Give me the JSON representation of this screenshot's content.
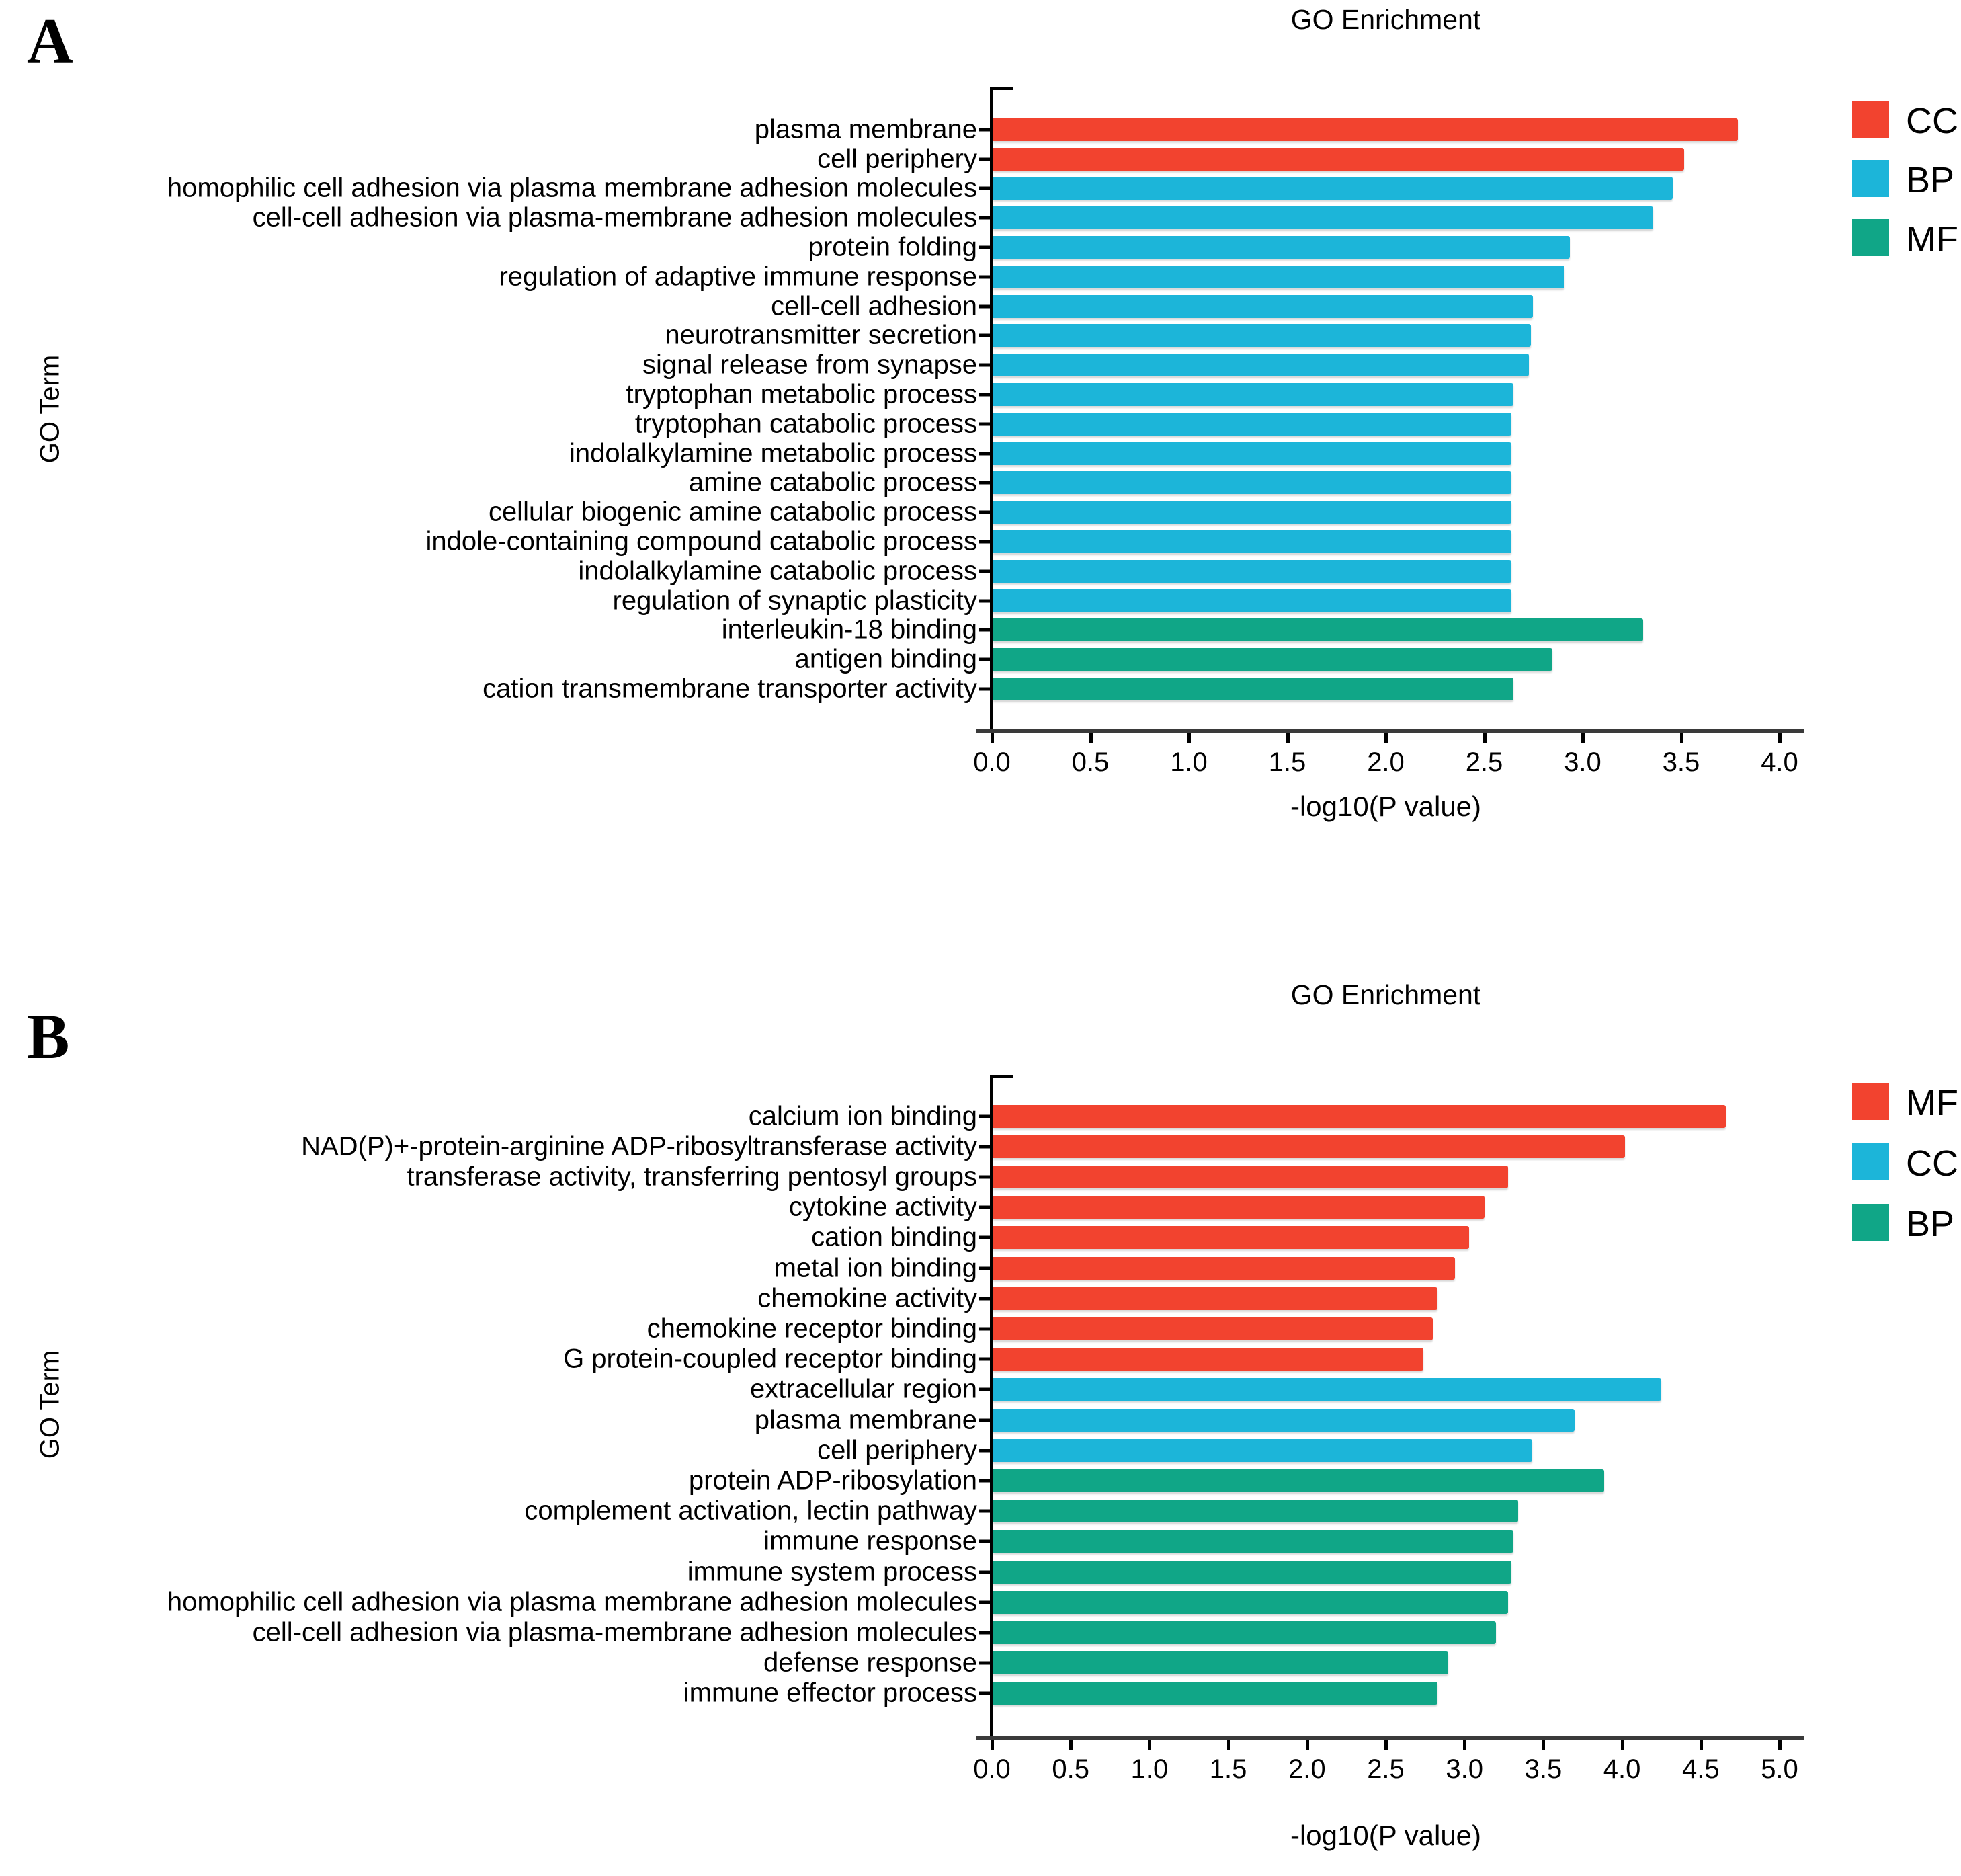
{
  "chart_data": [
    {
      "type": "bar",
      "orientation": "horizontal",
      "panel_label": "A",
      "title": "GO Enrichment",
      "xlabel": "-log10(P value)",
      "ylabel": "GO Term",
      "xlim": [
        0.0,
        4.0
      ],
      "xticks": [
        "0.0",
        "0.5",
        "1.0",
        "1.5",
        "2.0",
        "2.5",
        "3.0",
        "3.5",
        "4.0"
      ],
      "grid": false,
      "legend_position": "right",
      "legend": [
        {
          "label": "CC",
          "color": "#F2432F"
        },
        {
          "label": "BP",
          "color": "#1CB5D9"
        },
        {
          "label": "MF",
          "color": "#10A687"
        }
      ],
      "categories": [
        "plasma membrane",
        "cell periphery",
        "homophilic cell adhesion via plasma membrane adhesion molecules",
        "cell-cell adhesion via plasma-membrane adhesion molecules",
        "protein folding",
        "regulation of adaptive immune response",
        "cell-cell adhesion",
        "neurotransmitter secretion",
        "signal release from synapse",
        "tryptophan metabolic process",
        "tryptophan catabolic process",
        "indolalkylamine metabolic process",
        "amine catabolic process",
        "cellular biogenic amine catabolic process",
        "indole-containing compound catabolic process",
        "indolalkylamine catabolic process",
        "regulation of synaptic plasticity",
        "interleukin-18 binding",
        "antigen binding",
        "cation transmembrane transporter activity"
      ],
      "groups": [
        "CC",
        "CC",
        "BP",
        "BP",
        "BP",
        "BP",
        "BP",
        "BP",
        "BP",
        "BP",
        "BP",
        "BP",
        "BP",
        "BP",
        "BP",
        "BP",
        "BP",
        "MF",
        "MF",
        "MF"
      ],
      "values": [
        3.78,
        3.51,
        3.45,
        3.35,
        2.93,
        2.9,
        2.74,
        2.73,
        2.72,
        2.64,
        2.63,
        2.63,
        2.63,
        2.63,
        2.63,
        2.63,
        2.63,
        3.3,
        2.84,
        2.64
      ]
    },
    {
      "type": "bar",
      "orientation": "horizontal",
      "panel_label": "B",
      "title": "GO Enrichment",
      "xlabel": "-log10(P value)",
      "ylabel": "GO Term",
      "xlim": [
        0.0,
        5.0
      ],
      "xticks": [
        "0.0",
        "0.5",
        "1.0",
        "1.5",
        "2.0",
        "2.5",
        "3.0",
        "3.5",
        "4.0",
        "4.5",
        "5.0"
      ],
      "grid": false,
      "legend_position": "right",
      "legend": [
        {
          "label": "MF",
          "color": "#F2432F"
        },
        {
          "label": "CC",
          "color": "#1CB5D9"
        },
        {
          "label": "BP",
          "color": "#10A687"
        }
      ],
      "categories": [
        "calcium ion binding",
        "NAD(P)+-protein-arginine ADP-ribosyltransferase activity",
        "transferase activity, transferring pentosyl groups",
        "cytokine activity",
        "cation binding",
        "metal ion binding",
        "chemokine activity",
        "chemokine receptor binding",
        "G protein-coupled receptor binding",
        "extracellular region",
        "plasma membrane",
        "cell periphery",
        "protein ADP-ribosylation",
        "complement activation, lectin pathway",
        "immune response",
        "immune system process",
        "homophilic cell adhesion via plasma membrane adhesion molecules",
        "cell-cell adhesion via plasma-membrane adhesion molecules",
        "defense response",
        "immune effector process"
      ],
      "groups": [
        "MF",
        "MF",
        "MF",
        "MF",
        "MF",
        "MF",
        "MF",
        "MF",
        "MF",
        "CC",
        "CC",
        "CC",
        "BP",
        "BP",
        "BP",
        "BP",
        "BP",
        "BP",
        "BP",
        "BP"
      ],
      "values": [
        4.65,
        4.01,
        3.27,
        3.12,
        3.02,
        2.93,
        2.82,
        2.79,
        2.73,
        4.24,
        3.69,
        3.42,
        3.88,
        3.33,
        3.3,
        3.29,
        3.27,
        3.19,
        2.89,
        2.82
      ]
    }
  ]
}
